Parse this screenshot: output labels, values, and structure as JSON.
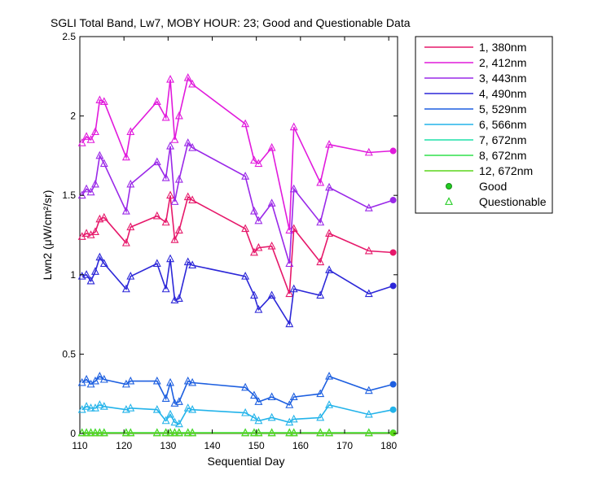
{
  "chart_data": {
    "type": "line",
    "title": "SGLI Total Band, Lw7, MOBY HOUR: 23;  Good and Questionable Data",
    "xlabel": "Sequential Day",
    "ylabel": "Lwn2 (μW/cm²/sr)",
    "xlim": [
      110,
      182
    ],
    "ylim": [
      0,
      2.5
    ],
    "xticks": [
      "110",
      "120",
      "130",
      "140",
      "150",
      "160",
      "170",
      "180"
    ],
    "yticks": [
      "0",
      "0.5",
      "1",
      "1.5",
      "2",
      "2.5"
    ],
    "grid": false,
    "legend_position": "outside-right",
    "x": [
      110.5,
      111.5,
      112.5,
      113.5,
      114.5,
      115.5,
      120.5,
      121.5,
      127.5,
      129.5,
      130.5,
      131.5,
      132.5,
      134.5,
      135.5,
      147.5,
      149.5,
      150.5,
      153.5,
      157.5,
      158.5,
      164.5,
      166.5,
      175.5,
      181
    ],
    "quality": [
      "Q",
      "Q",
      "Q",
      "Q",
      "Q",
      "Q",
      "Q",
      "Q",
      "Q",
      "Q",
      "Q",
      "Q",
      "Q",
      "Q",
      "Q",
      "Q",
      "Q",
      "Q",
      "Q",
      "Q",
      "Q",
      "Q",
      "Q",
      "Q",
      "G"
    ],
    "series": [
      {
        "name": "1, 380nm",
        "color": "#e6186a",
        "values": [
          1.24,
          1.26,
          1.25,
          1.27,
          1.35,
          1.36,
          1.2,
          1.3,
          1.37,
          1.33,
          1.5,
          1.22,
          1.28,
          1.49,
          1.47,
          1.29,
          1.14,
          1.17,
          1.18,
          0.88,
          1.29,
          1.08,
          1.26,
          1.15,
          1.14
        ]
      },
      {
        "name": "2, 412nm",
        "color": "#e11adc",
        "values": [
          1.83,
          1.87,
          1.85,
          1.9,
          2.1,
          2.09,
          1.74,
          1.9,
          2.09,
          1.99,
          2.23,
          1.85,
          2.0,
          2.24,
          2.2,
          1.95,
          1.72,
          1.7,
          1.8,
          1.28,
          1.93,
          1.58,
          1.82,
          1.77,
          1.78
        ]
      },
      {
        "name": "3, 443nm",
        "color": "#9a28e8",
        "values": [
          1.5,
          1.54,
          1.52,
          1.57,
          1.75,
          1.7,
          1.4,
          1.57,
          1.71,
          1.61,
          1.81,
          1.46,
          1.6,
          1.83,
          1.8,
          1.62,
          1.4,
          1.34,
          1.45,
          1.07,
          1.54,
          1.33,
          1.55,
          1.42,
          1.47
        ]
      },
      {
        "name": "4, 490nm",
        "color": "#2c27d8",
        "values": [
          0.99,
          1.0,
          0.96,
          1.02,
          1.11,
          1.07,
          0.91,
          0.99,
          1.07,
          0.91,
          1.1,
          0.84,
          0.85,
          1.08,
          1.06,
          0.99,
          0.87,
          0.78,
          0.87,
          0.69,
          0.91,
          0.87,
          1.03,
          0.88,
          0.93
        ]
      },
      {
        "name": "5, 529nm",
        "color": "#1d5fe0",
        "values": [
          0.32,
          0.34,
          0.31,
          0.33,
          0.36,
          0.34,
          0.31,
          0.33,
          0.33,
          0.22,
          0.32,
          0.19,
          0.2,
          0.33,
          0.32,
          0.29,
          0.24,
          0.2,
          0.23,
          0.18,
          0.23,
          0.25,
          0.36,
          0.27,
          0.31
        ]
      },
      {
        "name": "6, 566nm",
        "color": "#22b3ea",
        "values": [
          0.15,
          0.17,
          0.16,
          0.16,
          0.18,
          0.17,
          0.15,
          0.16,
          0.15,
          0.08,
          0.12,
          0.07,
          0.06,
          0.16,
          0.15,
          0.13,
          0.1,
          0.08,
          0.1,
          0.07,
          0.09,
          0.1,
          0.18,
          0.12,
          0.15
        ]
      },
      {
        "name": "7, 672nm",
        "color": "#1fe0a8",
        "values": [
          0.005,
          0.005,
          0.005,
          0.005,
          0.005,
          0.005,
          0.005,
          0.005,
          0.005,
          0.005,
          0.005,
          0.005,
          0.005,
          0.005,
          0.005,
          0.005,
          0.005,
          0.005,
          0.005,
          0.005,
          0.005,
          0.005,
          0.005,
          0.005,
          0.005
        ]
      },
      {
        "name": "8, 672nm",
        "color": "#30e04c",
        "values": [
          0.004,
          0.004,
          0.004,
          0.004,
          0.004,
          0.004,
          0.004,
          0.004,
          0.004,
          0.004,
          0.004,
          0.004,
          0.004,
          0.004,
          0.004,
          0.004,
          0.004,
          0.004,
          0.004,
          0.004,
          0.004,
          0.004,
          0.004,
          0.004,
          0.004
        ]
      },
      {
        "name": "12, 672nm",
        "color": "#5ad61c",
        "values": [
          0.003,
          0.003,
          0.003,
          0.003,
          0.003,
          0.003,
          0.003,
          0.003,
          0.003,
          0.003,
          0.003,
          0.003,
          0.003,
          0.003,
          0.003,
          0.003,
          0.003,
          0.003,
          0.003,
          0.003,
          0.003,
          0.003,
          0.003,
          0.003,
          0.003
        ]
      }
    ],
    "markers": [
      {
        "name": "Good",
        "symbol": "circle",
        "color": "#22cc22"
      },
      {
        "name": "Questionable",
        "symbol": "triangle",
        "color": "#22cc22"
      }
    ]
  }
}
